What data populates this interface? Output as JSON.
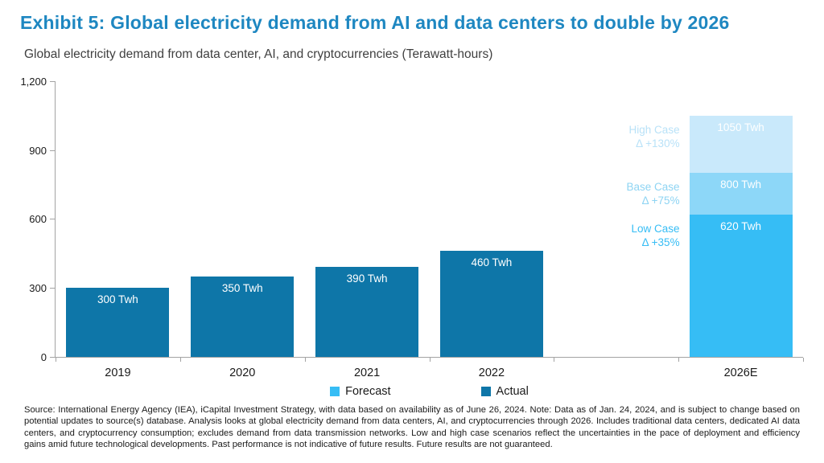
{
  "header": {
    "title": "Exhibit 5: Global electricity demand from AI and data centers to double by 2026",
    "subtitle": "Global electricity demand from data center, AI, and cryptocurrencies (Terawatt-hours)"
  },
  "chart_data": {
    "type": "bar",
    "title": "Exhibit 5: Global electricity demand from AI and data centers to double by 2026",
    "subtitle": "Global electricity demand from data center, AI, and cryptocurrencies (Terawatt-hours)",
    "unit": "Twh",
    "ylim": [
      0,
      1200
    ],
    "yticks": [
      {
        "value": 0,
        "label": "0"
      },
      {
        "value": 300,
        "label": "300"
      },
      {
        "value": 600,
        "label": "600"
      },
      {
        "value": 900,
        "label": "900"
      },
      {
        "value": 1200,
        "label": "1,200"
      }
    ],
    "categories": [
      "2019",
      "2020",
      "2021",
      "2022",
      "",
      "2026E"
    ],
    "actual_series": {
      "name": "Actual",
      "color": "#0e76a8",
      "points": [
        {
          "category": "2019",
          "value": 300,
          "label": "300 Twh"
        },
        {
          "category": "2020",
          "value": 350,
          "label": "350 Twh"
        },
        {
          "category": "2021",
          "value": 390,
          "label": "390 Twh"
        },
        {
          "category": "2022",
          "value": 460,
          "label": "460 Twh"
        }
      ]
    },
    "forecast_stack": {
      "name": "Forecast",
      "category": "2026E",
      "segments": [
        {
          "name": "Low Case",
          "delta": "Δ +35%",
          "value": 620,
          "label": "620 Twh",
          "color": "#36bdf5",
          "label_color": "#36bdf5"
        },
        {
          "name": "Base Case",
          "delta": "Δ +75%",
          "value": 800,
          "label": "800 Twh",
          "color": "#8dd7f8",
          "label_color": "#8ed4f3"
        },
        {
          "name": "High Case",
          "delta": "Δ +130%",
          "value": 1050,
          "label": "1050 Twh",
          "color": "#c9e9fb",
          "label_color": "#b9e2f8"
        }
      ]
    },
    "legend": [
      {
        "label": "Forecast",
        "color": "#36bdf5"
      },
      {
        "label": "Actual",
        "color": "#0e76a8"
      }
    ],
    "legend_position": "bottom-center",
    "grid": false
  },
  "footer": {
    "source_note": "Source: International Energy Agency (IEA), iCapital Investment Strategy, with data based on availability as of June 26, 2024. Note: Data as of Jan. 24, 2024, and is subject to change based on potential updates to source(s) database. Analysis looks at global electricity demand from data centers, AI, and cryptocurrencies through 2026. Includes traditional data centers, dedicated AI data centers, and cryptocurrency consumption; excludes demand from data transmission networks. Low and high case scenarios reflect the uncertainties in the pace of deployment and efficiency gains amid future technological developments. Past performance is not indicative of future results. Future results are not guaranteed."
  }
}
